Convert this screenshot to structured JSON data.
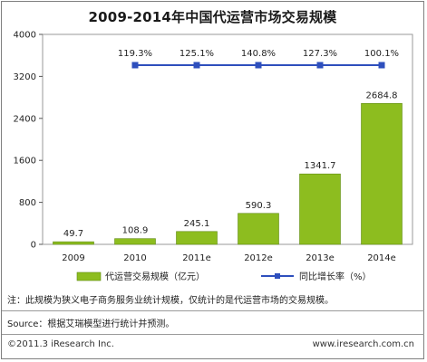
{
  "chart_data": {
    "type": "bar",
    "title": "2009-2014年中国代运营市场交易规模",
    "categories": [
      "2009",
      "2010",
      "2011e",
      "2012e",
      "2013e",
      "2014e"
    ],
    "series": [
      {
        "name": "代运营交易规模（亿元）",
        "type": "bar",
        "axis": "left",
        "values": [
          49.7,
          108.9,
          245.1,
          590.3,
          1341.7,
          2684.8
        ],
        "labels": [
          "49.7",
          "108.9",
          "245.1",
          "590.3",
          "1341.7",
          "2684.8"
        ],
        "color": "#8dbd1f"
      },
      {
        "name": "同比增长率（%）",
        "type": "line",
        "axis": "right",
        "values": [
          null,
          119.3,
          125.1,
          140.8,
          127.3,
          100.1
        ],
        "labels": [
          "",
          "119.3%",
          "125.1%",
          "140.8%",
          "127.3%",
          "100.1%"
        ],
        "color": "#2e4fbd"
      }
    ],
    "ylim": [
      0,
      4000
    ],
    "yticks": [
      "0",
      "800",
      "1600",
      "2400",
      "3200",
      "4000"
    ],
    "grid": false,
    "legend": "bottom"
  },
  "note": "注：此规模为狭义电子商务服务业统计规模，仅统计的是代运营市场的交易规模。",
  "source": "Source：根据艾瑞模型进行统计并预测。",
  "footer": {
    "copyright": "©2011.3 iResearch Inc.",
    "website": "www.iresearch.com.cn"
  }
}
